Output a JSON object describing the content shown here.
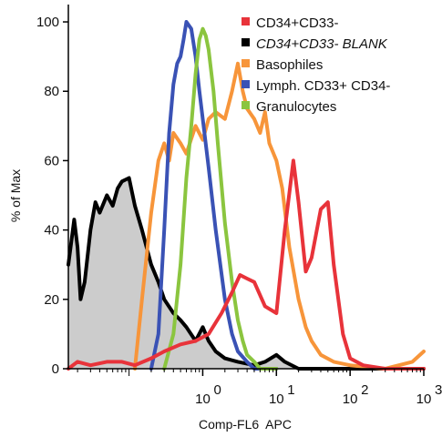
{
  "chart_data": {
    "type": "line",
    "xlabel": "Comp-FL6  APC",
    "ylabel": "% of Max",
    "x_scale": "log",
    "xlim": [
      0.015,
      1000
    ],
    "ylim": [
      0,
      105
    ],
    "x_ticks": [
      {
        "value": 1,
        "base": "10",
        "exp": "0"
      },
      {
        "value": 10,
        "base": "10",
        "exp": "1"
      },
      {
        "value": 100,
        "base": "10",
        "exp": "2"
      },
      {
        "value": 1000,
        "base": "10",
        "exp": "3"
      }
    ],
    "y_ticks": [
      0,
      20,
      40,
      60,
      80,
      100
    ],
    "grid": false,
    "legend_position": "top-right",
    "series": [
      {
        "name": "CD34+CD33-",
        "color": "#e8333a",
        "italic": false,
        "x": [
          0.015,
          0.02,
          0.03,
          0.05,
          0.08,
          0.12,
          0.2,
          0.3,
          0.5,
          0.8,
          1.2,
          1.8,
          2.5,
          3.2,
          4.0,
          5.0,
          7.0,
          10,
          13,
          17,
          20,
          25,
          30,
          40,
          50,
          60,
          80,
          100,
          150,
          300,
          1000
        ],
        "y": [
          0,
          2,
          1,
          2,
          2,
          1,
          3,
          5,
          7,
          8,
          10,
          16,
          22,
          27,
          26,
          25,
          18,
          16,
          40,
          60,
          48,
          28,
          32,
          46,
          48,
          30,
          10,
          3,
          1,
          0,
          0
        ]
      },
      {
        "name": "CD34+CD33- BLANK",
        "color": "#000000",
        "italic": true,
        "fill": "#cccccc",
        "x": [
          0.015,
          0.018,
          0.02,
          0.022,
          0.025,
          0.03,
          0.035,
          0.04,
          0.05,
          0.06,
          0.07,
          0.08,
          0.1,
          0.12,
          0.15,
          0.2,
          0.25,
          0.3,
          0.4,
          0.5,
          0.6,
          0.8,
          1.0,
          1.2,
          1.5,
          2.0,
          3.0,
          5.0,
          7.0,
          10,
          13,
          20,
          1000
        ],
        "y": [
          30,
          43,
          35,
          20,
          25,
          40,
          48,
          45,
          50,
          47,
          52,
          54,
          55,
          47,
          40,
          30,
          25,
          20,
          16,
          14,
          12,
          8,
          12,
          8,
          5,
          3,
          2,
          1,
          2,
          4,
          2,
          0,
          0
        ]
      },
      {
        "name": "Basophiles",
        "color": "#f7953a",
        "italic": false,
        "x": [
          0.12,
          0.15,
          0.2,
          0.25,
          0.3,
          0.35,
          0.4,
          0.5,
          0.6,
          0.8,
          1.0,
          1.2,
          1.5,
          2.0,
          2.5,
          3.0,
          3.5,
          4.0,
          5.0,
          6.0,
          7.0,
          8.0,
          10,
          12,
          15,
          20,
          25,
          30,
          40,
          60,
          100,
          300,
          700,
          1000
        ],
        "y": [
          0,
          20,
          45,
          60,
          65,
          60,
          68,
          65,
          62,
          70,
          66,
          72,
          74,
          72,
          80,
          88,
          80,
          75,
          72,
          68,
          74,
          65,
          60,
          52,
          35,
          20,
          12,
          8,
          4,
          2,
          1,
          0,
          2,
          5
        ]
      },
      {
        "name": "Lymph. CD33+ CD34-",
        "color": "#3a52b5",
        "italic": false,
        "x": [
          0.2,
          0.25,
          0.3,
          0.35,
          0.4,
          0.45,
          0.5,
          0.55,
          0.6,
          0.7,
          0.8,
          0.9,
          1.0,
          1.2,
          1.5,
          2.0,
          2.5,
          3.0,
          4.0,
          5.0,
          10
        ],
        "y": [
          0,
          10,
          40,
          68,
          82,
          88,
          90,
          95,
          100,
          98,
          90,
          80,
          72,
          58,
          40,
          20,
          10,
          5,
          2,
          0,
          0
        ]
      },
      {
        "name": "Granulocytes",
        "color": "#8bc53f",
        "italic": false,
        "x": [
          0.3,
          0.4,
          0.5,
          0.6,
          0.7,
          0.8,
          0.9,
          1.0,
          1.1,
          1.2,
          1.4,
          1.6,
          2.0,
          2.5,
          3.0,
          3.5,
          4.0,
          5.0,
          6.0,
          10
        ],
        "y": [
          0,
          10,
          30,
          55,
          70,
          85,
          95,
          98,
          96,
          92,
          80,
          65,
          42,
          25,
          14,
          8,
          4,
          2,
          0,
          0
        ]
      }
    ]
  }
}
